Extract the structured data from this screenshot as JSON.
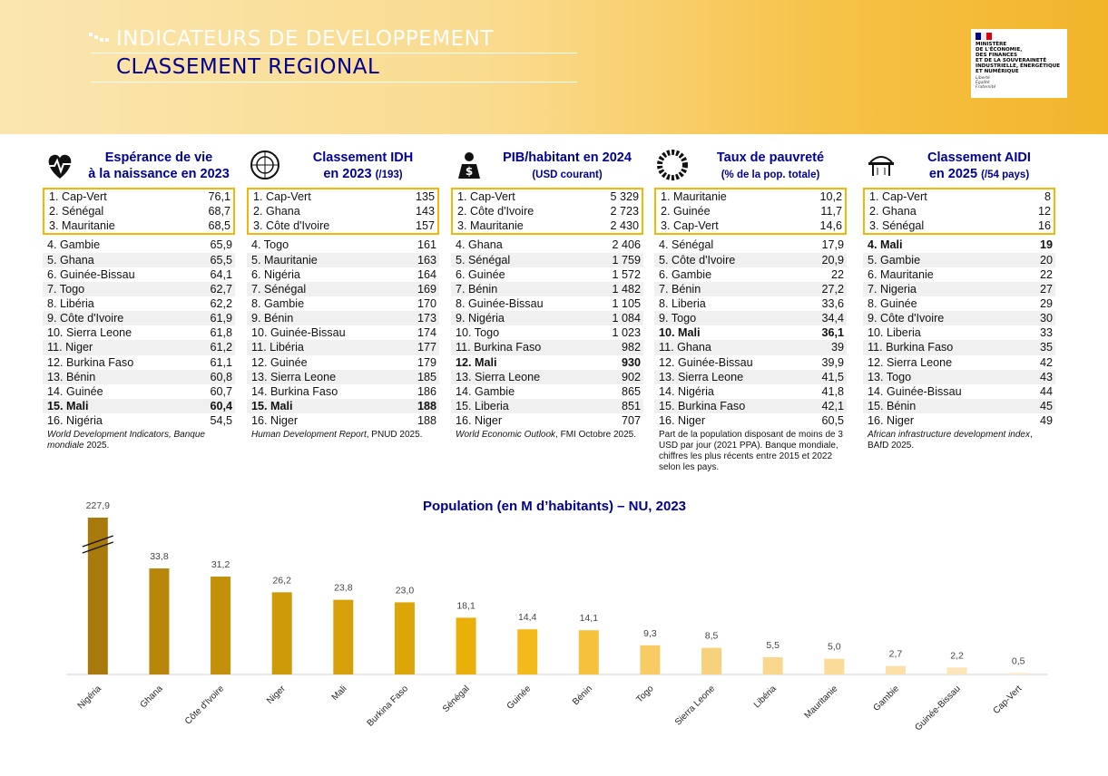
{
  "header": {
    "title": "INDICATEURS DE DEVELOPPEMENT",
    "subtitle": "CLASSEMENT REGIONAL",
    "logo": [
      "MINISTÈRE",
      "DE L'ÉCONOMIE,",
      "DES FINANCES",
      "ET DE LA SOUVERAINETÉ",
      "INDUSTRIELLE, ÉNERGÉTIQUE",
      "ET NUMÉRIQUE"
    ],
    "motto": [
      "Liberté",
      "Égalité",
      "Fraternité"
    ]
  },
  "tables": [
    {
      "title": [
        "Espérance de vie",
        "à la naissance en 2023"
      ],
      "rows": [
        [
          "1. Cap-Vert",
          "76,1"
        ],
        [
          "2. Sénégal",
          "68,7"
        ],
        [
          "3. Mauritanie",
          "68,5"
        ],
        [
          "4. Gambie",
          "65,9"
        ],
        [
          "5. Ghana",
          "65,5"
        ],
        [
          "6. Guinée-Bissau",
          "64,1"
        ],
        [
          "7. Togo",
          "62,7"
        ],
        [
          "8. Libéria",
          "62,2"
        ],
        [
          "9. Côte d'Ivoire",
          "61,9"
        ],
        [
          "10. Sierra Leone",
          "61,8"
        ],
        [
          "11. Niger",
          "61,2"
        ],
        [
          "12. Burkina Faso",
          "61,1"
        ],
        [
          "13. Bénin",
          "60,8"
        ],
        [
          "14. Guinée",
          "60,7"
        ],
        [
          "15. Mali",
          "60,4"
        ],
        [
          "16. Nigéria",
          "54,5"
        ]
      ],
      "bold_row": 14,
      "source": [
        {
          "text": "World Development Indicators, Banque mondiale",
          "italic": true
        },
        {
          "text": "2025."
        }
      ]
    },
    {
      "title": [
        "Classement IDH",
        "en 2023"
      ],
      "title_note": "(/193)",
      "rows": [
        [
          "1. Cap-Vert",
          "135"
        ],
        [
          "2. Ghana",
          "143"
        ],
        [
          "3. Côte d'Ivoire",
          "157"
        ],
        [
          "4. Togo",
          "161"
        ],
        [
          "5. Mauritanie",
          "163"
        ],
        [
          "6. Nigéria",
          "164"
        ],
        [
          "7. Sénégal",
          "169"
        ],
        [
          "8. Gambie",
          "170"
        ],
        [
          "9. Bénin",
          "173"
        ],
        [
          "10. Guinée-Bissau",
          "174"
        ],
        [
          "11. Libéria",
          "177"
        ],
        [
          "12. Guinée",
          "179"
        ],
        [
          "13. Sierra Leone",
          "185"
        ],
        [
          "14. Burkina Faso",
          "186"
        ],
        [
          "15. Mali",
          "188"
        ],
        [
          "16. Niger",
          "188"
        ]
      ],
      "bold_row": 14,
      "source": [
        {
          "text": "Human Development Report",
          "italic": true
        },
        {
          "text": ", PNUD 2025."
        }
      ]
    },
    {
      "title": [
        "PIB/habitant en 2024"
      ],
      "title_note": "(USD courant)",
      "rows": [
        [
          "1. Cap-Vert",
          "5 329"
        ],
        [
          "2. Côte d'Ivoire",
          "2 723"
        ],
        [
          "3. Mauritanie",
          "2 430"
        ],
        [
          "4. Ghana",
          "2 406"
        ],
        [
          "5. Sénégal",
          "1 759"
        ],
        [
          "6. Guinée",
          "1 572"
        ],
        [
          "7. Bénin",
          "1 482"
        ],
        [
          "8. Guinée-Bissau",
          "1 105"
        ],
        [
          "9. Nigéria",
          "1 084"
        ],
        [
          "10. Togo",
          "1 023"
        ],
        [
          "11. Burkina Faso",
          "982"
        ],
        [
          "12. Mali",
          "930"
        ],
        [
          "13. Sierra Leone",
          "902"
        ],
        [
          "14. Gambie",
          "865"
        ],
        [
          "15. Liberia",
          "851"
        ],
        [
          "16. Niger",
          "707"
        ]
      ],
      "bold_row": 11,
      "source": [
        {
          "text": "World Economic Outlook",
          "italic": true
        },
        {
          "text": ", FMI Octobre 2025."
        }
      ]
    },
    {
      "title": [
        "Taux de pauvreté"
      ],
      "title_note": "(% de la pop. totale)",
      "rows": [
        [
          "1. Mauritanie",
          "10,2"
        ],
        [
          "2. Guinée",
          "11,7"
        ],
        [
          "3. Cap-Vert",
          "14,6"
        ],
        [
          "4. Sénégal",
          "17,9"
        ],
        [
          "5. Côte d'Ivoire",
          "20,9"
        ],
        [
          "6. Gambie",
          "22"
        ],
        [
          "7. Bénin",
          "27,2"
        ],
        [
          "8. Liberia",
          "33,6"
        ],
        [
          "9. Togo",
          "34,4"
        ],
        [
          "10. Mali",
          "36,1"
        ],
        [
          "11. Ghana",
          "39"
        ],
        [
          "12. Guinée-Bissau",
          "39,9"
        ],
        [
          "13. Sierra Leone",
          "41,5"
        ],
        [
          "14. Nigéria",
          "41,8"
        ],
        [
          "15. Burkina Faso",
          "42,1"
        ],
        [
          "16. Niger",
          "60,5"
        ]
      ],
      "bold_row": 9,
      "source": [
        {
          "text": "Part de la population disposant de moins de 3 USD par jour (2021 PPA). Banque mondiale, chiffres les plus récents entre 2015 et 2022 selon les pays."
        }
      ]
    },
    {
      "title": [
        "Classement AIDI",
        "en 2025"
      ],
      "title_note": "(/54 pays)",
      "rows": [
        [
          "1. Cap-Vert",
          "8"
        ],
        [
          "2. Ghana",
          "12"
        ],
        [
          "3. Sénégal",
          "16"
        ],
        [
          "4. Mali",
          "19"
        ],
        [
          "5. Gambie",
          "20"
        ],
        [
          "6. Mauritanie",
          "22"
        ],
        [
          "7. Nigeria",
          "27"
        ],
        [
          "8. Guinée",
          "29"
        ],
        [
          "9. Côte d'Ivoire",
          "30"
        ],
        [
          "10. Liberia",
          "33"
        ],
        [
          "11. Burkina Faso",
          "35"
        ],
        [
          "12. Sierra Leone",
          "42"
        ],
        [
          "13. Togo",
          "43"
        ],
        [
          "14. Guinée-Bissau",
          "44"
        ],
        [
          "15. Bénin",
          "45"
        ],
        [
          "16. Niger",
          "49"
        ]
      ],
      "bold_row": 3,
      "source": [
        {
          "text": "African infrastructure development index",
          "italic": true
        },
        {
          "text": ", BAfD 2025."
        }
      ]
    }
  ],
  "chart_data": {
    "type": "bar",
    "title": "Population (en M d’habitants) – NU, 2023",
    "categories": [
      "Nigéria",
      "Ghana",
      "Côte d'Ivoire",
      "Niger",
      "Mali",
      "Burkina Faso",
      "Sénégal",
      "Guinée",
      "Bénin",
      "Togo",
      "Sierra Leone",
      "Libéria",
      "Mauritanie",
      "Gambie",
      "Guinée-Bissau",
      "Cap-Vert"
    ],
    "values": [
      227.9,
      33.8,
      31.2,
      26.2,
      23.8,
      23.0,
      18.1,
      14.4,
      14.1,
      9.3,
      8.5,
      5.5,
      5.0,
      2.7,
      2.2,
      0.5
    ],
    "value_labels": [
      "227,9",
      "33,8",
      "31,2",
      "26,2",
      "23,8",
      "23,0",
      "18,1",
      "14,4",
      "14,1",
      "9,3",
      "8,5",
      "5,5",
      "5,0",
      "2,7",
      "2,2",
      "0,5"
    ],
    "colors": [
      "#a87a0c",
      "#b8860b",
      "#c4900a",
      "#cf9a0a",
      "#d6a00a",
      "#dda608",
      "#e9b00a",
      "#f4ba1c",
      "#f6c23e",
      "#f8cb64",
      "#f8d17c",
      "#f9d78c",
      "#fadb98",
      "#fbe0a8",
      "#fce5b6",
      "#fdebc6"
    ],
    "ylim": [
      0,
      50
    ],
    "y_break": true
  }
}
